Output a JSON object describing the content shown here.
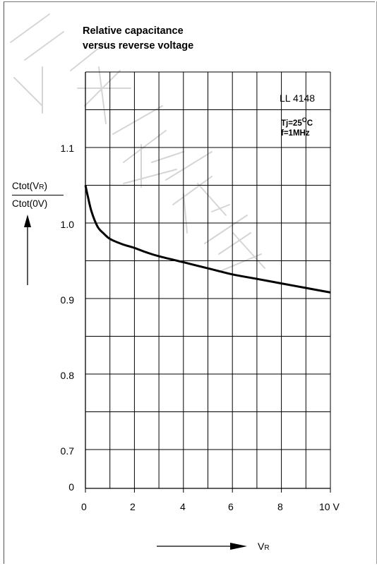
{
  "title_line1": "Relative capacitance",
  "title_line2": "versus reverse voltage",
  "part_number": "LL 4148",
  "condition_tj": "Tj=25",
  "condition_tj_sup": "O",
  "condition_tj_unit": "C",
  "condition_f": "f=1MHz",
  "ylabel_num": "Ctot(V",
  "ylabel_num_sub": "R",
  "ylabel_num_end": ")",
  "ylabel_den": "Ctot(0V)",
  "xlabel_main": "V",
  "xlabel_sub": "R",
  "y_tick_labels": [
    "1.1",
    "1.0",
    "0.9",
    "0.8",
    "0.7",
    "0"
  ],
  "x_tick_labels": [
    "0",
    "2",
    "4",
    "6",
    "8",
    "10 V"
  ],
  "chart_data": {
    "type": "line",
    "title": "Relative capacitance versus reverse voltage",
    "xlabel": "VR",
    "ylabel": "Ctot(VR)/Ctot(0V)",
    "xlim": [
      0,
      10
    ],
    "ylim": [
      0.65,
      1.15
    ],
    "y_axis_break": "0 shown at bottom",
    "grid": true,
    "series": [
      {
        "name": "LL 4148",
        "x": [
          0,
          0.1,
          0.25,
          0.5,
          0.75,
          1,
          1.5,
          2,
          2.5,
          3,
          4,
          5,
          6,
          7,
          8,
          9,
          10
        ],
        "y": [
          1.0,
          0.985,
          0.965,
          0.945,
          0.936,
          0.929,
          0.922,
          0.917,
          0.911,
          0.906,
          0.898,
          0.89,
          0.882,
          0.876,
          0.87,
          0.864,
          0.858
        ]
      }
    ],
    "colors": {
      "line": "#000000",
      "grid": "#000000",
      "watermark": "#b0b0b0"
    }
  }
}
